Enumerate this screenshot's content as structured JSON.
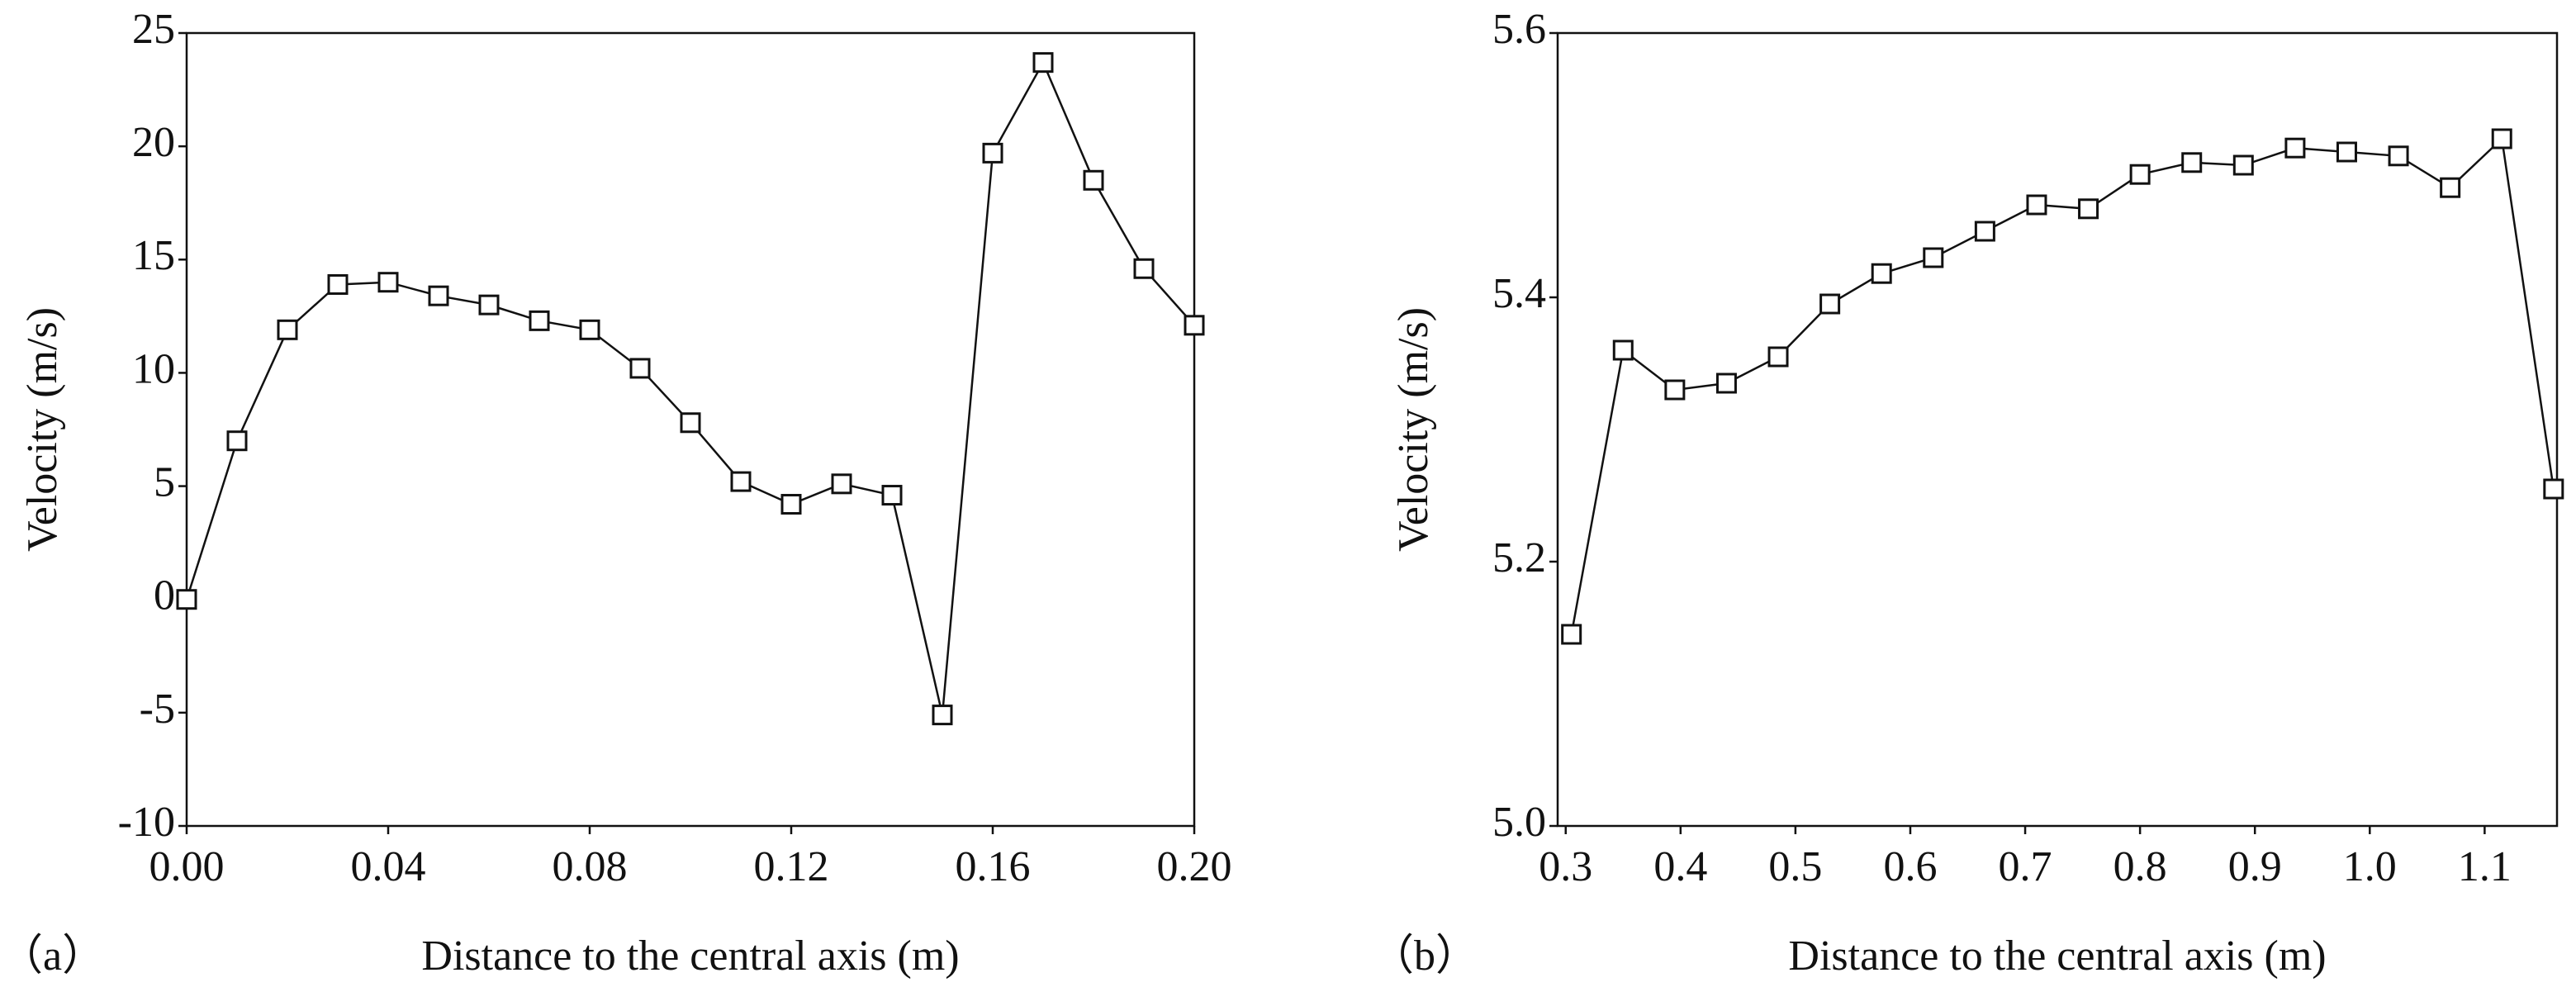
{
  "chart_data": [
    {
      "type": "line",
      "panel_label": "（a）",
      "xlabel": "Distance to the central axis (m)",
      "ylabel": "Velocity (m/s)",
      "color": "#111111",
      "marker": "square",
      "x": [
        0,
        0.01,
        0.02,
        0.03,
        0.04,
        0.05,
        0.06,
        0.07,
        0.08,
        0.09,
        0.1,
        0.11,
        0.12,
        0.13,
        0.14,
        0.15,
        0.16,
        0.17,
        0.18,
        0.19,
        0.2
      ],
      "values": [
        0,
        7.0,
        11.9,
        13.9,
        14.0,
        13.4,
        13.0,
        12.3,
        11.9,
        10.2,
        7.8,
        5.2,
        4.2,
        5.1,
        4.6,
        -5.1,
        19.7,
        23.7,
        18.5,
        14.6,
        12.1
      ],
      "xlim": [
        0,
        0.2
      ],
      "xticks": [
        {
          "value": 0,
          "label": "0.00"
        },
        0.04,
        0.08,
        0.12,
        0.16,
        {
          "value": 0.2,
          "label": "0.20"
        }
      ],
      "ylim": [
        -10,
        25
      ],
      "yticks": [
        -10,
        -5,
        0,
        5,
        10,
        15,
        20,
        25
      ]
    },
    {
      "type": "line",
      "panel_label": "（b）",
      "xlabel": "Distance to the central axis (m)",
      "ylabel": "Velocity (m/s)",
      "color": "#111111",
      "marker": "square",
      "x": [
        0.305,
        0.35,
        0.395,
        0.44,
        0.485,
        0.53,
        0.575,
        0.62,
        0.665,
        0.71,
        0.755,
        0.8,
        0.845,
        0.89,
        0.935,
        0.98,
        1.025,
        1.07,
        1.115,
        1.16
      ],
      "values": [
        5.145,
        5.36,
        5.33,
        5.335,
        5.355,
        5.395,
        5.418,
        5.43,
        5.45,
        5.47,
        5.467,
        5.493,
        5.502,
        5.5,
        5.513,
        5.51,
        5.507,
        5.483,
        5.52,
        5.255
      ],
      "xlim": [
        0.293,
        1.163
      ],
      "xticks": [
        0.3,
        0.4,
        0.5,
        0.6,
        0.7,
        0.8,
        0.9,
        {
          "value": 1,
          "label": "1.0"
        },
        1.1
      ],
      "ylim": [
        5.0,
        5.6
      ],
      "yticks": [
        {
          "value": 5,
          "label": "5.0"
        },
        5.2,
        5.4,
        5.6
      ]
    }
  ]
}
